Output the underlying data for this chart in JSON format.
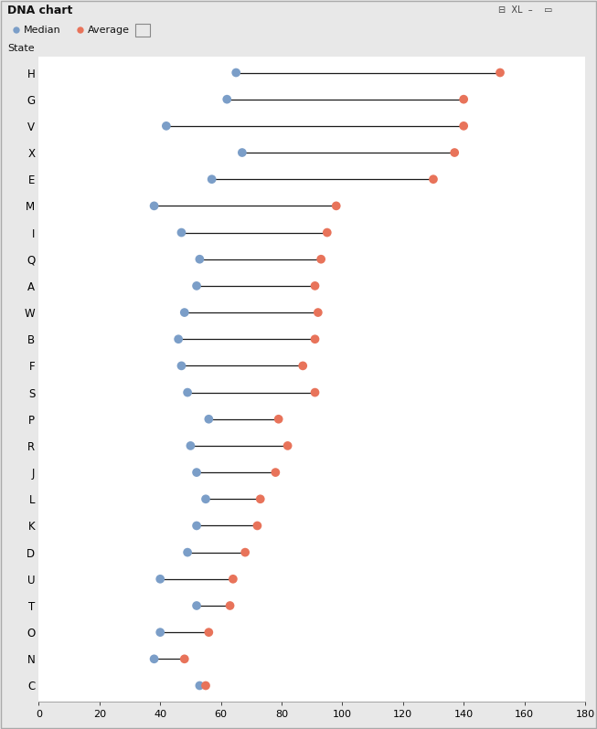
{
  "title": "DNA chart",
  "ylabel": "State",
  "xlim": [
    0,
    180
  ],
  "xticks": [
    0,
    20,
    40,
    60,
    80,
    100,
    120,
    140,
    160,
    180
  ],
  "states": [
    "H",
    "G",
    "V",
    "X",
    "E",
    "M",
    "I",
    "Q",
    "A",
    "W",
    "B",
    "F",
    "S",
    "P",
    "R",
    "J",
    "L",
    "K",
    "D",
    "U",
    "T",
    "O",
    "N",
    "C"
  ],
  "median": [
    65,
    62,
    42,
    67,
    57,
    38,
    47,
    53,
    52,
    48,
    46,
    47,
    49,
    56,
    50,
    52,
    55,
    52,
    49,
    40,
    52,
    40,
    38,
    53
  ],
  "average": [
    152,
    140,
    140,
    137,
    130,
    98,
    95,
    93,
    91,
    92,
    91,
    87,
    91,
    79,
    82,
    78,
    73,
    72,
    68,
    64,
    63,
    56,
    48,
    55
  ],
  "median_color": "#7b9ec8",
  "average_color": "#e8735a",
  "line_color": "#1a1a1a",
  "bg_color": "#e8e8e8",
  "plot_bg_color": "#ffffff",
  "title_bar_color": "#c8c8c8",
  "inner_bg_color": "#ebebeb",
  "marker_size": 7,
  "legend_median_label": "Median",
  "legend_average_label": "Average"
}
